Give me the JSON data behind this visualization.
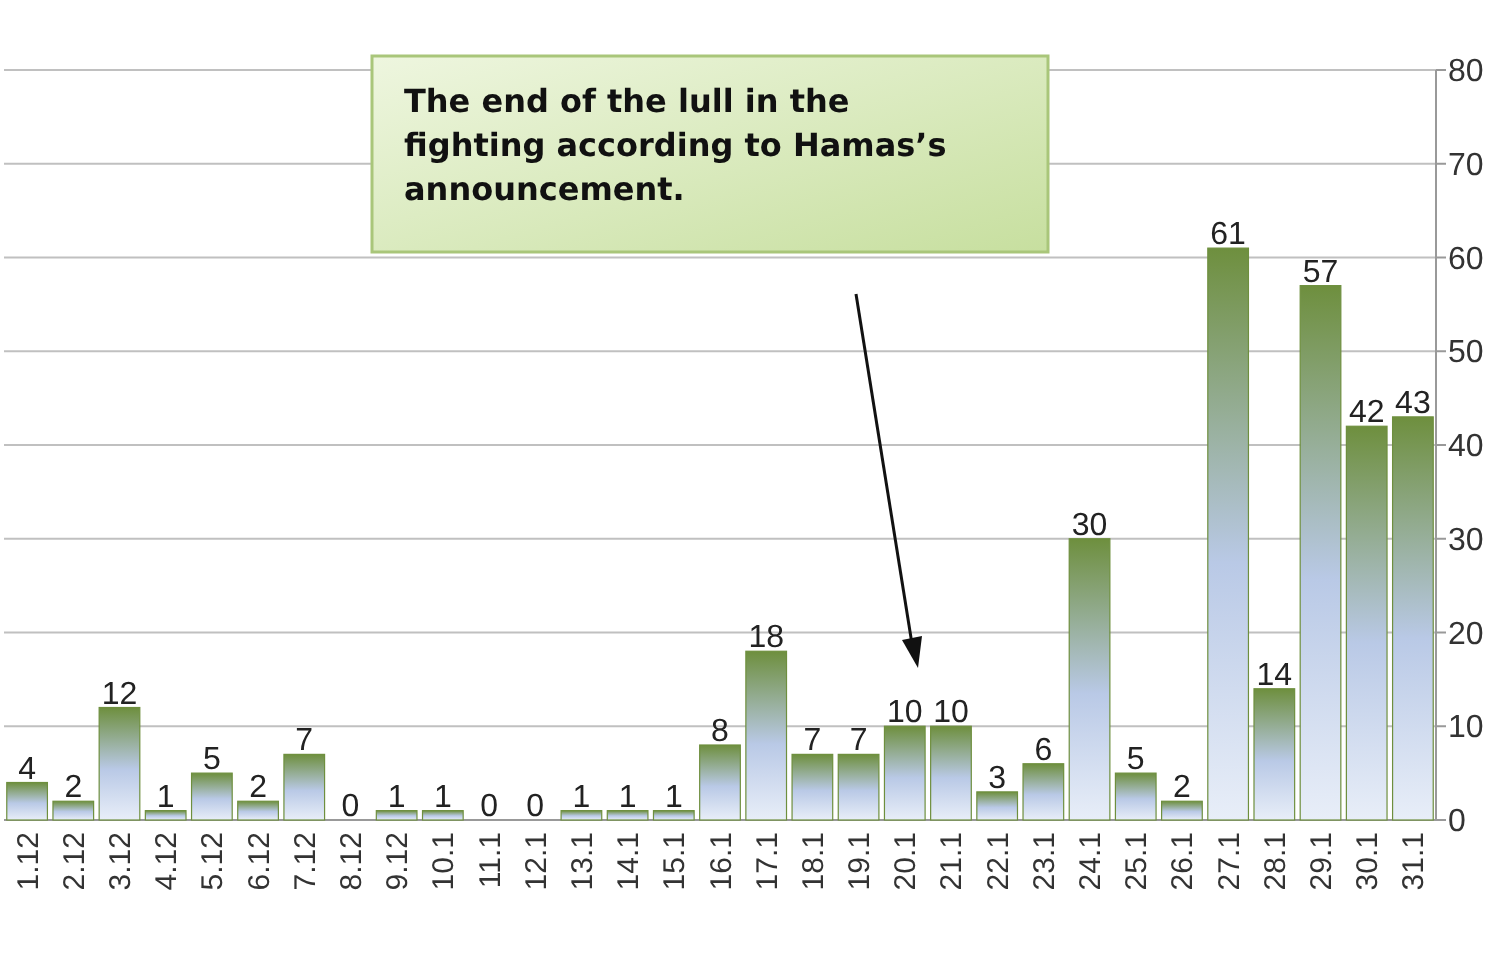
{
  "chart_data": {
    "type": "bar",
    "categories": [
      "1.12",
      "2.12",
      "3.12",
      "4.12",
      "5.12",
      "6.12",
      "7.12",
      "8.12",
      "9.12",
      "10.1",
      "11.1",
      "12.1",
      "13.1",
      "14.1",
      "15.1",
      "16.1",
      "17.1",
      "18.1",
      "19.1",
      "20.1",
      "21.1",
      "22.1",
      "23.1",
      "24.1",
      "25.1",
      "26.1",
      "27.1",
      "28.1",
      "29.1",
      "30.1",
      "31.1"
    ],
    "values": [
      4,
      2,
      12,
      1,
      5,
      2,
      7,
      0,
      1,
      1,
      0,
      0,
      1,
      1,
      1,
      8,
      18,
      7,
      7,
      10,
      10,
      3,
      6,
      30,
      5,
      2,
      61,
      14,
      57,
      42,
      43
    ],
    "color": "#6e8f3e",
    "ylim": [
      0,
      80
    ],
    "yticks": [
      0,
      10,
      20,
      30,
      40,
      50,
      60,
      70,
      80
    ],
    "grid": "y",
    "data_labels": true,
    "annotations": [
      "The end of the lull in the fighting according to Hamas’s announcement."
    ]
  }
}
